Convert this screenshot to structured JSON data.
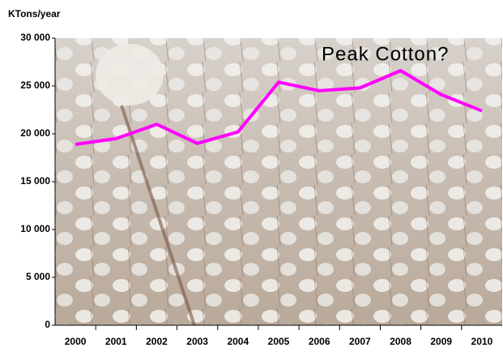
{
  "chart_data": {
    "type": "line",
    "y_label": "KTons/year",
    "annotation": "Peak Cotton?",
    "categories": [
      "2000",
      "2001",
      "2002",
      "2003",
      "2004",
      "2005",
      "2006",
      "2007",
      "2008",
      "2009",
      "2010"
    ],
    "values": [
      18900,
      19500,
      21000,
      19000,
      20200,
      25400,
      24500,
      24800,
      26600,
      24100,
      22400
    ],
    "color": "#ff00ff",
    "ylim": [
      0,
      30000
    ],
    "yticks": [
      0,
      {
        "value": 5000,
        "label": "5 000"
      },
      {
        "value": 10000,
        "label": "10 000"
      },
      {
        "value": 15000,
        "label": "15 000"
      },
      {
        "value": 20000,
        "label": "20 000"
      },
      {
        "value": 25000,
        "label": "25 000"
      },
      {
        "value": 30000,
        "label": "30 000"
      }
    ],
    "grid": false
  }
}
